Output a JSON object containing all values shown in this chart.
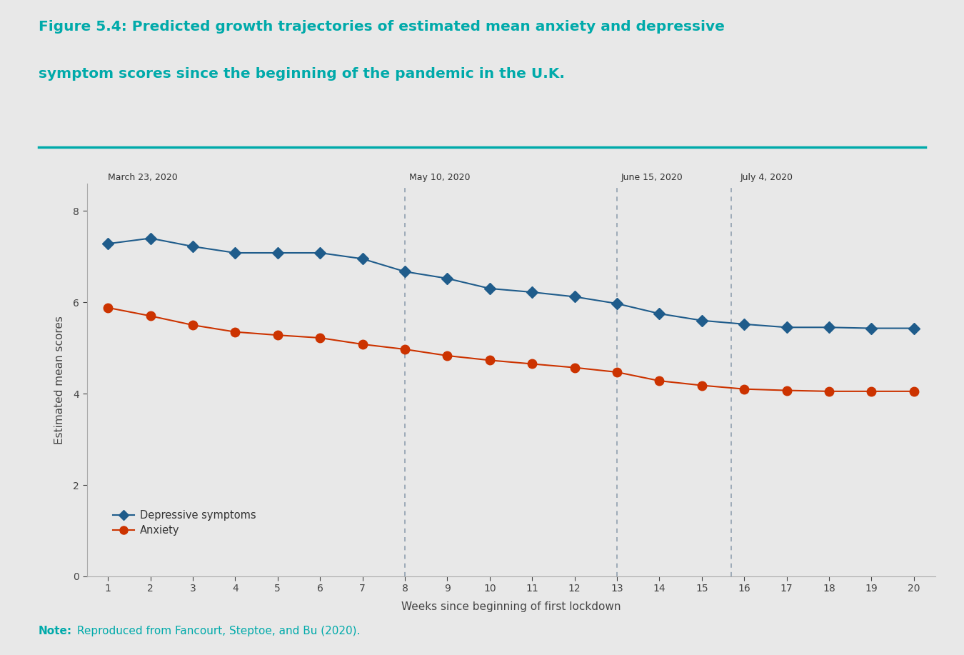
{
  "title_bold": "Figure 5.4: ",
  "title_rest_line1": "Predicted growth trajectories of estimated mean anxiety and depressive",
  "title_line2": "symptom scores since the beginning of the pandemic in the U.K.",
  "title_color": "#00AAAA",
  "note_bold": "Note:",
  "note_rest": " Reproduced from Fancourt, Steptoe, and Bu (2020).",
  "note_color": "#00AAAA",
  "background_color": "#E8E8E8",
  "plot_bg_color": "#E8E8E8",
  "xlabel": "Weeks since beginning of first lockdown",
  "ylabel": "Estimated mean scores",
  "xlim": [
    0.5,
    20.5
  ],
  "ylim": [
    0,
    8.6
  ],
  "yticks": [
    0,
    2,
    4,
    6,
    8
  ],
  "xticks": [
    1,
    2,
    3,
    4,
    5,
    6,
    7,
    8,
    9,
    10,
    11,
    12,
    13,
    14,
    15,
    16,
    17,
    18,
    19,
    20
  ],
  "depressive_x": [
    1,
    2,
    3,
    4,
    5,
    6,
    7,
    8,
    9,
    10,
    11,
    12,
    13,
    14,
    15,
    16,
    17,
    18,
    19,
    20
  ],
  "depressive_y": [
    7.28,
    7.4,
    7.22,
    7.08,
    7.08,
    7.08,
    6.95,
    6.67,
    6.52,
    6.3,
    6.22,
    6.12,
    5.97,
    5.75,
    5.6,
    5.52,
    5.45,
    5.45,
    5.43,
    5.43
  ],
  "anxiety_x": [
    1,
    2,
    3,
    4,
    5,
    6,
    7,
    8,
    9,
    10,
    11,
    12,
    13,
    14,
    15,
    16,
    17,
    18,
    19,
    20
  ],
  "anxiety_y": [
    5.88,
    5.7,
    5.5,
    5.35,
    5.28,
    5.22,
    5.08,
    4.97,
    4.83,
    4.73,
    4.65,
    4.57,
    4.47,
    4.28,
    4.18,
    4.1,
    4.07,
    4.05,
    4.05,
    4.05
  ],
  "depressive_color": "#1F5C8B",
  "anxiety_color": "#CC3300",
  "line_width": 1.5,
  "marker_size_diamond": 8,
  "marker_size_circle": 9,
  "vlines": [
    8,
    13,
    15.7
  ],
  "date_labels": [
    {
      "week": 1.0,
      "text": "March 23, 2020"
    },
    {
      "week": 8.1,
      "text": "May 10, 2020"
    },
    {
      "week": 13.1,
      "text": "June 15, 2020"
    },
    {
      "week": 15.9,
      "text": "July 4, 2020"
    }
  ],
  "legend_depressive": "Depressive symptoms",
  "legend_anxiety": "Anxiety",
  "separator_color": "#00AAAA",
  "vline_color": "#8899AA"
}
